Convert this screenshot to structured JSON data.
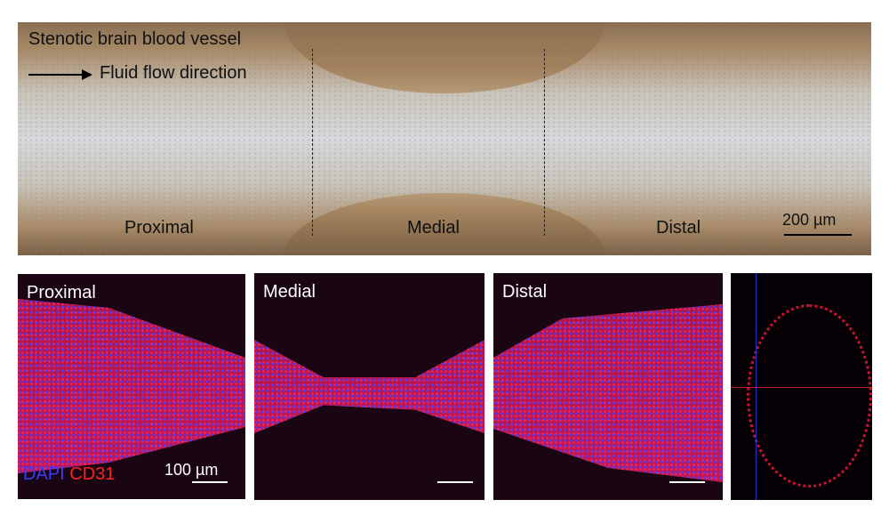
{
  "top_panel": {
    "title": "Stenotic brain blood vessel",
    "arrow_label": "Fluid flow direction",
    "regions": [
      "Proximal",
      "Medial",
      "Distal"
    ],
    "scale_bar": "200 µm"
  },
  "bottom_panels": {
    "labels": [
      "Proximal",
      "Medial",
      "Distal"
    ],
    "stain_dapi": "DAPI",
    "stain_cd31": "CD31",
    "scale_bar": "100 µm",
    "colors": {
      "dapi": "#3a3aff",
      "cd31": "#ff2020"
    }
  }
}
